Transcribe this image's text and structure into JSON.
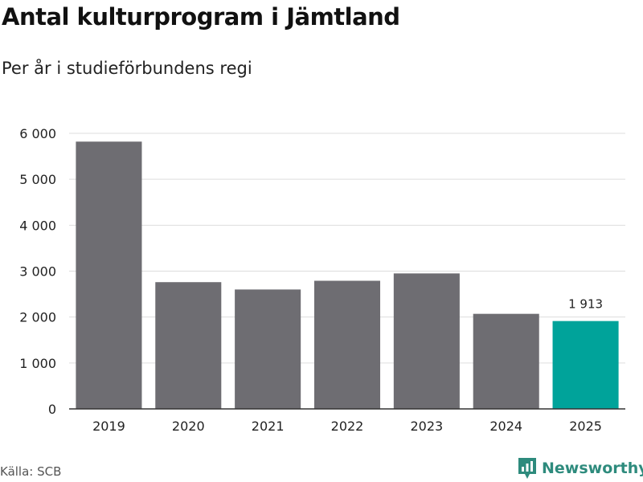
{
  "header": {
    "title": "Antal kulturprogram i Jämtland",
    "subtitle": "Per år i studieförbundens regi"
  },
  "footer": {
    "source": "Källa: SCB",
    "brand_name": "Newsworthy",
    "brand_icon": "newsworthy-logo-icon"
  },
  "colors": {
    "bar": "#6e6d72",
    "highlight": "#00a39a",
    "grid": "#dddddd",
    "axis": "#333333",
    "brand": "#2e8b7d"
  },
  "chart_data": {
    "type": "bar",
    "title": "Antal kulturprogram i Jämtland",
    "subtitle": "Per år i studieförbundens regi",
    "xlabel": "",
    "ylabel": "",
    "categories": [
      "2019",
      "2020",
      "2021",
      "2022",
      "2023",
      "2024",
      "2025"
    ],
    "values": [
      5820,
      2760,
      2600,
      2790,
      2950,
      2070,
      1913
    ],
    "highlight_index": 6,
    "data_labels": [
      {
        "index": 6,
        "text": "1 913"
      }
    ],
    "ylim": [
      0,
      6000
    ],
    "yticks": [
      0,
      1000,
      2000,
      3000,
      4000,
      5000,
      6000
    ],
    "ytick_labels": [
      "0",
      "1 000",
      "2 000",
      "3 000",
      "4 000",
      "5 000",
      "6 000"
    ],
    "grid": true,
    "legend": "none"
  }
}
